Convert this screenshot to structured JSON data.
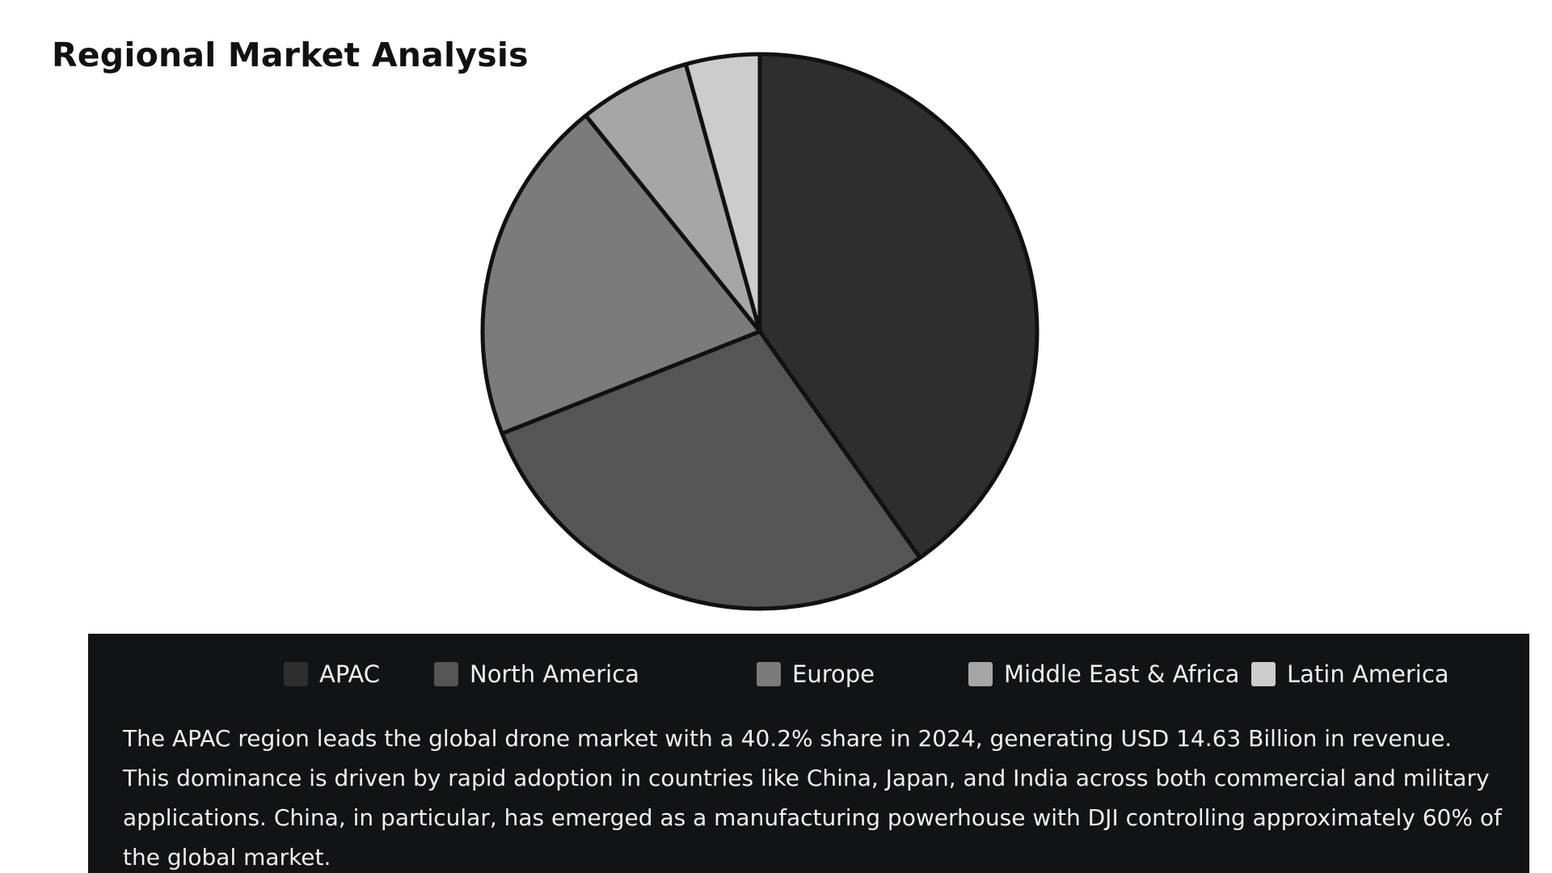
{
  "page": {
    "title": "Regional Market Analysis"
  },
  "chart_data": {
    "type": "pie",
    "title": "",
    "unit": "%",
    "start_angle_deg": 0,
    "direction": "clockwise",
    "legend_position": "bottom",
    "slices": [
      {
        "name": "APAC",
        "value": 40.2,
        "color": "#2e2e2e"
      },
      {
        "name": "North America",
        "value": 28.8,
        "color": "#555555"
      },
      {
        "name": "Europe",
        "value": 20.2,
        "color": "#7b7b7b"
      },
      {
        "name": "Middle East & Africa",
        "value": 6.5,
        "color": "#a6a6a6"
      },
      {
        "name": "Latin America",
        "value": 4.3,
        "color": "#cccccc"
      }
    ],
    "outline_color": "#111111"
  },
  "description": {
    "text": "The APAC region leads the global drone market with a 40.2% share in 2024, generating USD 14.63 Billion in revenue. This dominance is driven by rapid adoption in countries like China, Japan, and India across both commercial and military applications. China, in particular, has emerged as a manufacturing powerhouse with DJI controlling approximately 60% of the global market."
  }
}
